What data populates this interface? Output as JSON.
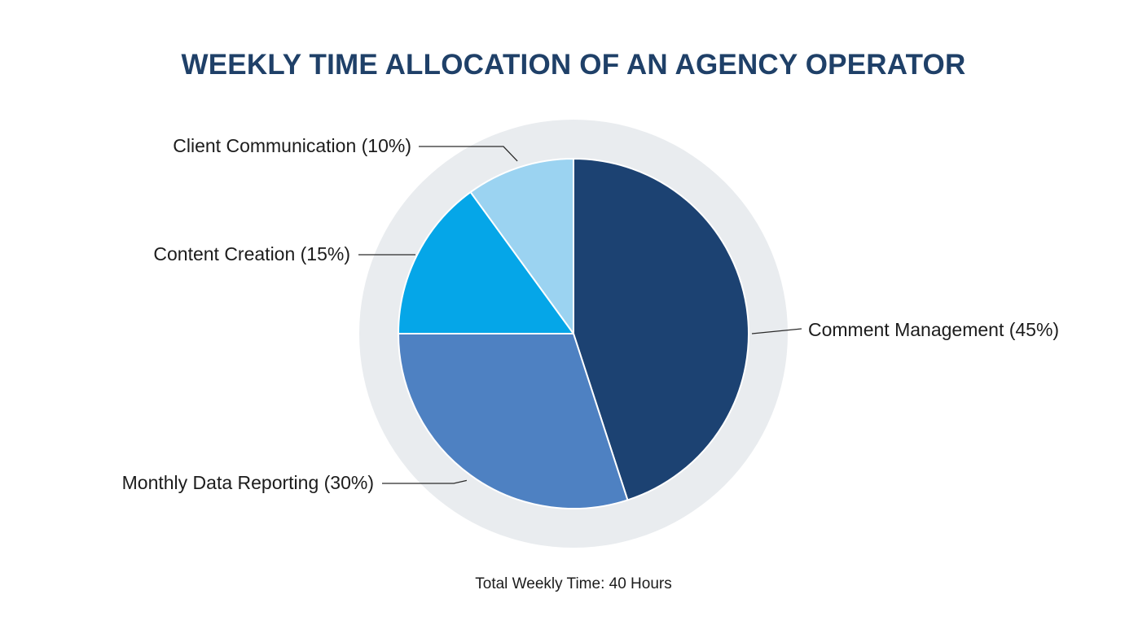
{
  "chart_data": {
    "type": "pie",
    "title": "WEEKLY TIME ALLOCATION OF AN AGENCY OPERATOR",
    "footnote": "Total Weekly Time: 40 Hours",
    "categories": [
      "Comment Management",
      "Monthly Data Reporting",
      "Content Creation",
      "Client Communication"
    ],
    "values": [
      45,
      30,
      15,
      10
    ],
    "unit": "%",
    "labels": [
      "Comment Management (45%)",
      "Monthly Data Reporting (30%)",
      "Content Creation (15%)",
      "Client Communication (10%)"
    ],
    "colors": [
      "#1c4272",
      "#4e81c2",
      "#05a6e8",
      "#9bd3f1"
    ],
    "ring_color": "#e9ecef",
    "start": "12 o'clock",
    "direction": "clockwise"
  }
}
